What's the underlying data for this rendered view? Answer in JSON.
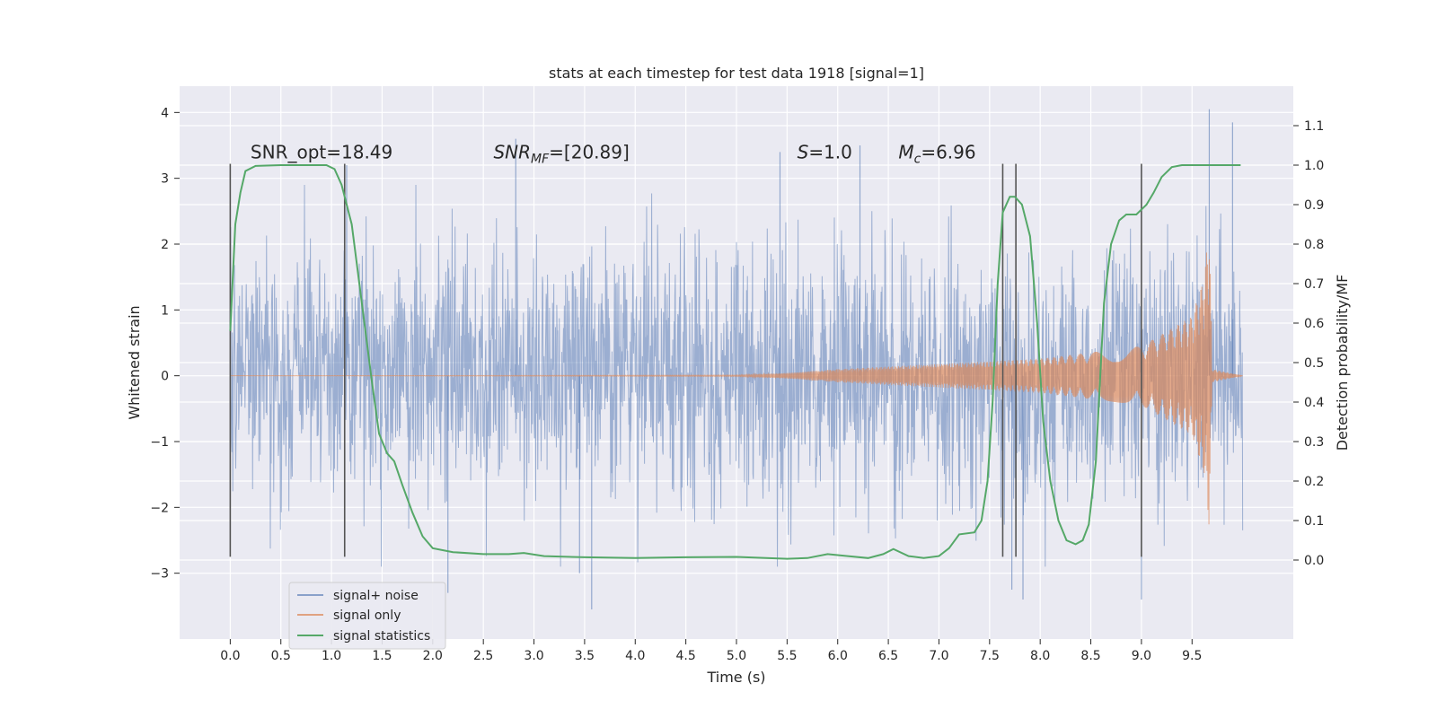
{
  "chart_data": {
    "type": "line",
    "title": "stats at each timestep for test data 1918 [signal=1]",
    "xlabel": "Time (s)",
    "ylabel": "Whitened strain",
    "y2label": "Detection probability/MF",
    "xlim": [
      -0.5,
      10.5
    ],
    "ylim": [
      -4.0,
      4.4
    ],
    "y2lim": [
      -0.2,
      1.2
    ],
    "x_ticks": [
      0.0,
      0.5,
      1.0,
      1.5,
      2.0,
      2.5,
      3.0,
      3.5,
      4.0,
      4.5,
      5.0,
      5.5,
      6.0,
      6.5,
      7.0,
      7.5,
      8.0,
      8.5,
      9.0,
      9.5
    ],
    "x_tick_labels": [
      "0.0",
      "0.5",
      "1.0",
      "1.5",
      "2.0",
      "2.5",
      "3.0",
      "3.5",
      "4.0",
      "4.5",
      "5.0",
      "5.5",
      "6.0",
      "6.5",
      "7.0",
      "7.5",
      "8.0",
      "8.5",
      "9.0",
      "9.5"
    ],
    "y_ticks": [
      -3,
      -2,
      -1,
      0,
      1,
      2,
      3,
      4
    ],
    "y_tick_labels": [
      "−3",
      "−2",
      "−1",
      "0",
      "1",
      "2",
      "3",
      "4"
    ],
    "y2_ticks": [
      0.0,
      0.1,
      0.2,
      0.3,
      0.4,
      0.5,
      0.6,
      0.7,
      0.8,
      0.9,
      1.0,
      1.1
    ],
    "y2_tick_labels": [
      "0.0",
      "0.1",
      "0.2",
      "0.3",
      "0.4",
      "0.5",
      "0.6",
      "0.7",
      "0.8",
      "0.9",
      "1.0",
      "1.1"
    ],
    "grid": true,
    "legend_position": "lower-left",
    "annotations": [
      {
        "text": "SNR_opt=18.49",
        "x": 0.2,
        "y": 3.3
      },
      {
        "text_main": "SNR",
        "text_sub": "MF",
        "text_rest": "=[20.89]",
        "x": 2.6,
        "y": 3.3
      },
      {
        "text_main": "S",
        "text_rest": "=1.0",
        "x": 5.6,
        "y": 3.3
      },
      {
        "text_main": "M",
        "text_sub": "c",
        "text_rest": "=6.96",
        "x": 6.6,
        "y": 3.3
      }
    ],
    "vertical_lines": [
      {
        "x": 0.0,
        "y": [
          -2.75,
          3.22
        ]
      },
      {
        "x": 1.13,
        "y": [
          -2.75,
          3.22
        ]
      },
      {
        "x": 7.63,
        "y": [
          -2.75,
          3.22
        ]
      },
      {
        "x": 7.76,
        "y": [
          -2.75,
          3.22
        ]
      },
      {
        "x": 9.0,
        "y": [
          -2.75,
          3.22
        ]
      }
    ],
    "series": [
      {
        "name": "signal+ noise",
        "color": "#4c72b0",
        "kind": "noise",
        "x_range": [
          0.0,
          10.0
        ],
        "extent_negative_envelope": [
          [
            0.0,
            -1.9
          ],
          [
            10.0,
            -1.9
          ]
        ],
        "extent_positive_envelope": [
          [
            0.0,
            1.9
          ],
          [
            10.0,
            1.9
          ]
        ],
        "spike_peaks": [
          {
            "x": 1.15,
            "y": 3.2
          },
          {
            "x": 2.82,
            "y": 3.6
          },
          {
            "x": 5.43,
            "y": 3.4
          },
          {
            "x": 6.22,
            "y": 3.5
          },
          {
            "x": 9.67,
            "y": 4.05
          },
          {
            "x": 9.9,
            "y": 3.85
          },
          {
            "x": 3.57,
            "y": -3.55
          },
          {
            "x": 7.83,
            "y": -3.4
          },
          {
            "x": 9.0,
            "y": -3.4
          },
          {
            "x": 7.72,
            "y": -3.25
          },
          {
            "x": 3.45,
            "y": -3.0
          },
          {
            "x": 2.15,
            "y": -3.3
          }
        ]
      },
      {
        "name": "signal only",
        "color": "#dd8452",
        "kind": "chirp",
        "x_range": [
          0.0,
          10.0
        ],
        "envelope": [
          [
            0.0,
            0.0
          ],
          [
            5.0,
            0.01
          ],
          [
            5.5,
            0.04
          ],
          [
            6.0,
            0.1
          ],
          [
            7.0,
            0.18
          ],
          [
            8.0,
            0.26
          ],
          [
            9.0,
            0.45
          ],
          [
            9.5,
            0.9
          ],
          [
            9.62,
            1.5
          ],
          [
            9.67,
            2.35
          ],
          [
            9.7,
            0.1
          ],
          [
            10.0,
            0.0
          ]
        ]
      },
      {
        "name": "signal statistics",
        "color": "#55a868",
        "kind": "line",
        "axis": "right",
        "points": [
          [
            0.0,
            0.58
          ],
          [
            0.05,
            0.85
          ],
          [
            0.1,
            0.93
          ],
          [
            0.15,
            0.985
          ],
          [
            0.25,
            0.998
          ],
          [
            0.5,
            1.0
          ],
          [
            0.95,
            1.0
          ],
          [
            1.03,
            0.99
          ],
          [
            1.1,
            0.95
          ],
          [
            1.2,
            0.85
          ],
          [
            1.3,
            0.65
          ],
          [
            1.4,
            0.45
          ],
          [
            1.47,
            0.32
          ],
          [
            1.55,
            0.27
          ],
          [
            1.62,
            0.25
          ],
          [
            1.7,
            0.19
          ],
          [
            1.8,
            0.12
          ],
          [
            1.9,
            0.06
          ],
          [
            2.0,
            0.03
          ],
          [
            2.2,
            0.02
          ],
          [
            2.5,
            0.015
          ],
          [
            2.75,
            0.015
          ],
          [
            2.9,
            0.018
          ],
          [
            3.1,
            0.01
          ],
          [
            3.5,
            0.007
          ],
          [
            4.0,
            0.005
          ],
          [
            4.5,
            0.007
          ],
          [
            5.0,
            0.008
          ],
          [
            5.5,
            0.003
          ],
          [
            5.7,
            0.005
          ],
          [
            5.9,
            0.015
          ],
          [
            6.1,
            0.01
          ],
          [
            6.3,
            0.005
          ],
          [
            6.45,
            0.015
          ],
          [
            6.55,
            0.028
          ],
          [
            6.7,
            0.01
          ],
          [
            6.85,
            0.005
          ],
          [
            7.0,
            0.01
          ],
          [
            7.1,
            0.03
          ],
          [
            7.2,
            0.065
          ],
          [
            7.35,
            0.07
          ],
          [
            7.42,
            0.1
          ],
          [
            7.48,
            0.2
          ],
          [
            7.53,
            0.4
          ],
          [
            7.58,
            0.7
          ],
          [
            7.63,
            0.88
          ],
          [
            7.7,
            0.92
          ],
          [
            7.75,
            0.92
          ],
          [
            7.82,
            0.9
          ],
          [
            7.9,
            0.82
          ],
          [
            7.97,
            0.6
          ],
          [
            8.03,
            0.35
          ],
          [
            8.1,
            0.2
          ],
          [
            8.18,
            0.1
          ],
          [
            8.26,
            0.05
          ],
          [
            8.35,
            0.04
          ],
          [
            8.42,
            0.05
          ],
          [
            8.48,
            0.09
          ],
          [
            8.55,
            0.25
          ],
          [
            8.63,
            0.65
          ],
          [
            8.7,
            0.8
          ],
          [
            8.78,
            0.86
          ],
          [
            8.85,
            0.875
          ],
          [
            8.95,
            0.875
          ],
          [
            9.05,
            0.9
          ],
          [
            9.12,
            0.93
          ],
          [
            9.2,
            0.97
          ],
          [
            9.3,
            0.995
          ],
          [
            9.4,
            1.0
          ],
          [
            9.98,
            1.0
          ]
        ]
      }
    ]
  }
}
